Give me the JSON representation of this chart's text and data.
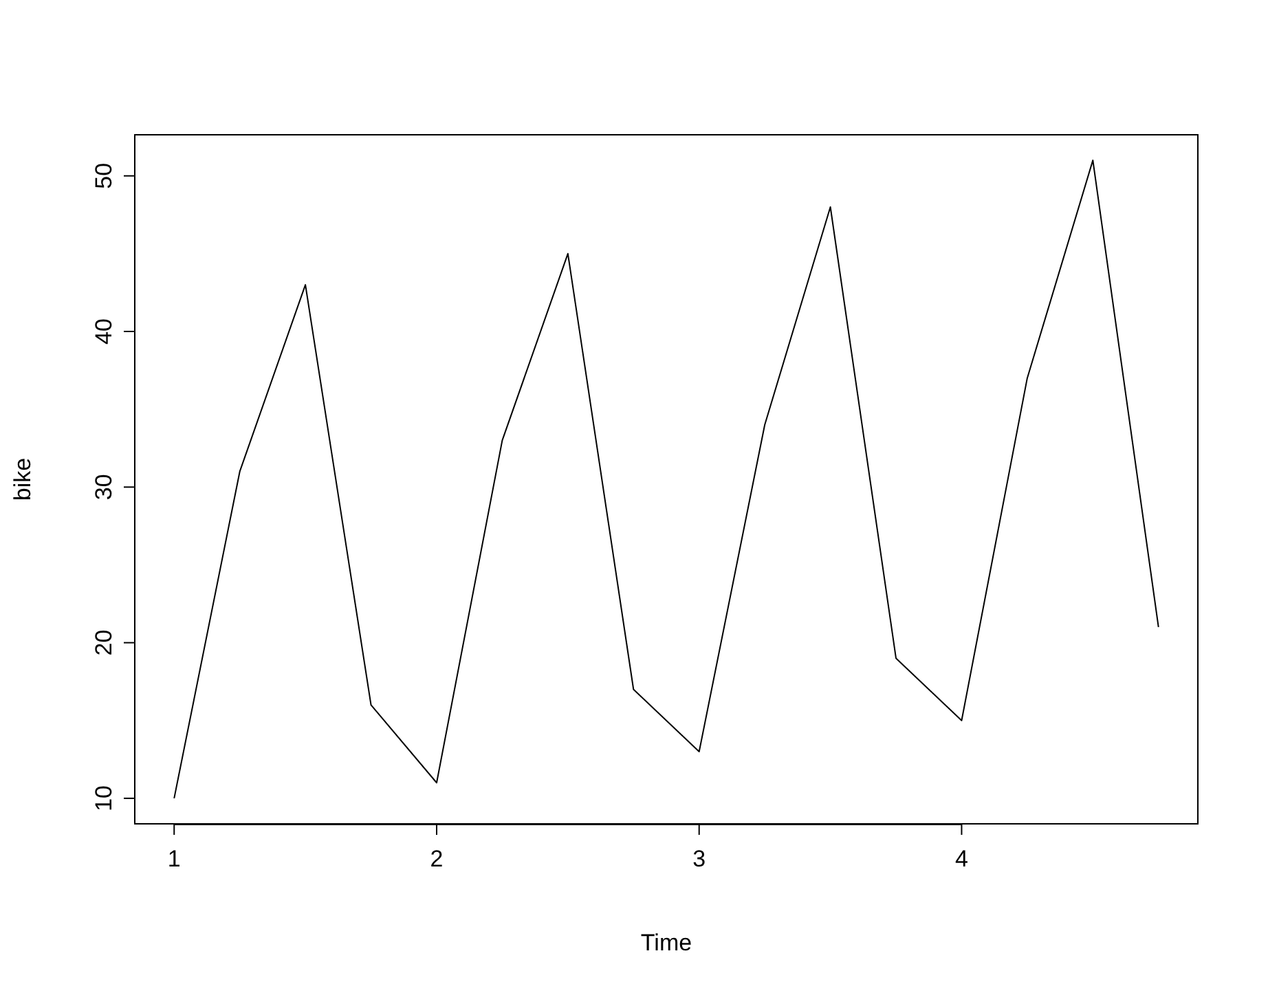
{
  "chart_data": {
    "type": "line",
    "xlabel": "Time",
    "ylabel": "bike",
    "x": [
      1,
      1.25,
      1.5,
      1.75,
      2,
      2.25,
      2.5,
      2.75,
      3,
      3.25,
      3.5,
      3.75,
      4,
      4.25,
      4.5,
      4.75
    ],
    "series": [
      {
        "color": "#000000",
        "values": [
          10,
          31,
          43,
          16,
          11,
          33,
          45,
          17,
          13,
          34,
          48,
          19,
          15,
          37,
          51,
          21
        ]
      }
    ],
    "xlim": [
      0.85,
      4.9
    ],
    "ylim": [
      8.36,
      52.64
    ],
    "xticks": [
      1,
      2,
      3,
      4
    ],
    "yticks": [
      10,
      20,
      30,
      40,
      50
    ],
    "grid": false,
    "marker": "none",
    "line_style": "solid"
  }
}
